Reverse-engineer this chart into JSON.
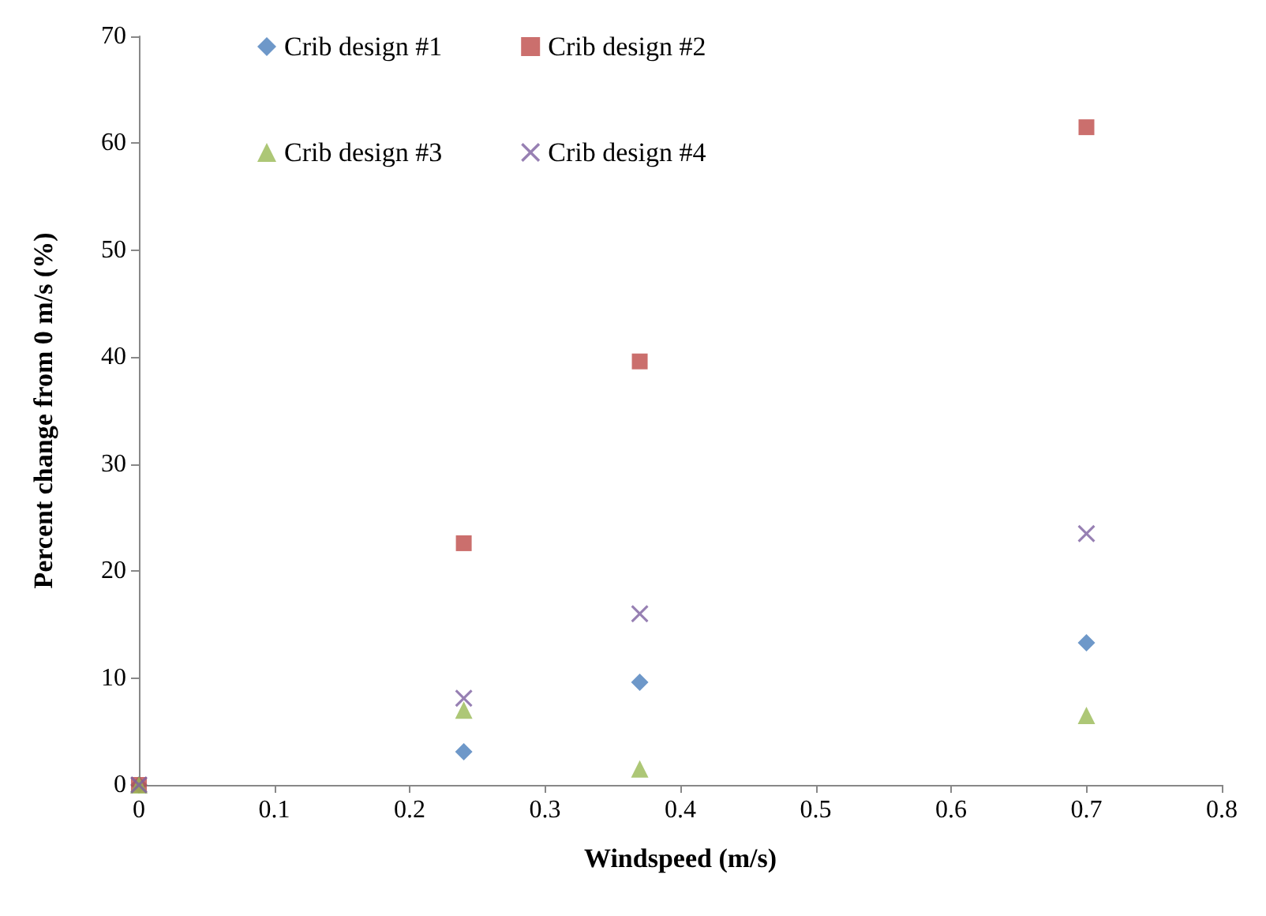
{
  "chart_data": {
    "type": "scatter",
    "xlabel": "Windspeed (m/s)",
    "ylabel": "Percent change from 0 m/s (%)",
    "xlim": [
      0,
      0.8
    ],
    "xticks": [
      0,
      0.1,
      0.2,
      0.3,
      0.4,
      0.5,
      0.6,
      0.7,
      0.8
    ],
    "ylim": [
      0,
      70
    ],
    "yticks": [
      0,
      10,
      20,
      30,
      40,
      50,
      60,
      70
    ],
    "grid": false,
    "legend": "top",
    "x": [
      0,
      0.24,
      0.37,
      0.7
    ],
    "series": [
      {
        "name": "Crib design #1",
        "color": "#4a7ebb",
        "marker": "diamond",
        "values": [
          0,
          3.1,
          9.6,
          13.3
        ]
      },
      {
        "name": "Crib design #2",
        "color": "#be4b48",
        "marker": "square",
        "values": [
          0,
          22.6,
          39.6,
          61.5
        ]
      },
      {
        "name": "Crib design #3",
        "color": "#98b954",
        "marker": "triangle",
        "values": [
          0,
          7,
          1.5,
          6.5
        ]
      },
      {
        "name": "Crib design #4",
        "color": "#7d60a0",
        "marker": "cross",
        "values": [
          0,
          8.1,
          16,
          23.5
        ]
      }
    ]
  }
}
